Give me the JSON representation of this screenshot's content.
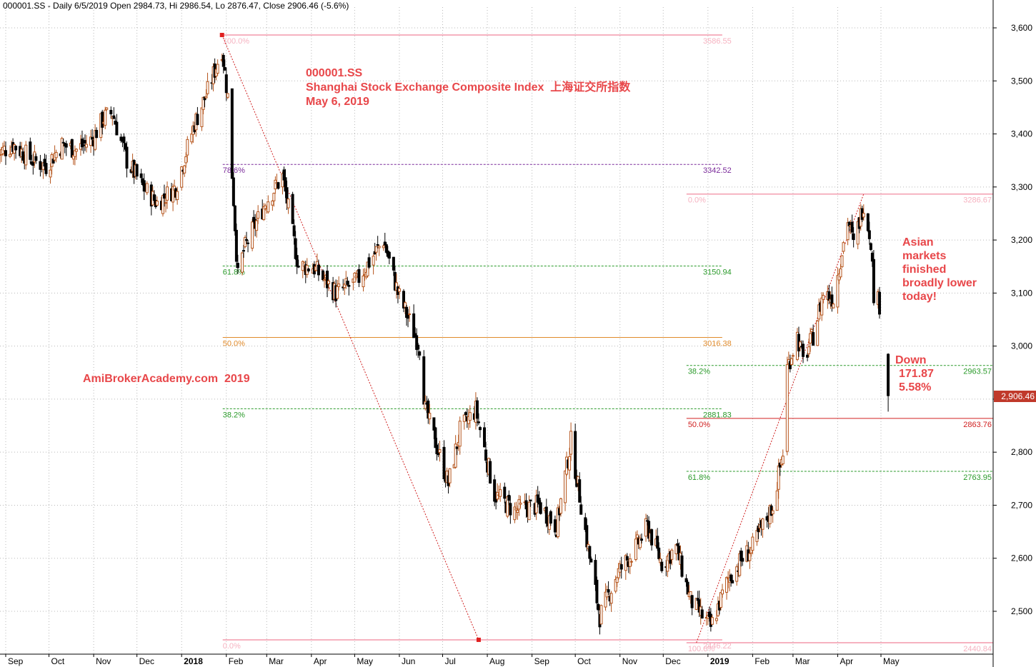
{
  "header": "000001.SS - Daily 6/5/2019 Open 2984.73, Hi 2986.54, Lo 2876.47, Close 2906.46 (-5.6%)",
  "annotations": {
    "ticker": "000001.SS",
    "index_name": "Shanghai Stock Exchange Composite Index  上海证交所指数",
    "date": "May 6, 2019",
    "watermark": "AmiBrokerAcademy.com  2019",
    "asian_lines": [
      "Asian",
      "markets",
      "finished",
      "broadly lower",
      "today!"
    ],
    "down_lines": [
      "Down",
      "171.87",
      "5.58%"
    ]
  },
  "last_price_label": "2,906.46",
  "colors": {
    "up_candle": "#b5541b",
    "down_candle": "#000000",
    "annotation_red": "#e8474a",
    "fib_pink": "#f6b2c0",
    "fib_purple": "#7a2a9a",
    "fib_green": "#2a9a2a",
    "fib_orange": "#e08a2a",
    "fib_red": "#d02020",
    "grid": "#b8b8b8"
  },
  "chart_data": {
    "type": "candlestick",
    "title": "000001.SS",
    "ylim": [
      2425,
      3640
    ],
    "y_ticks": [
      2500,
      2600,
      2700,
      2800,
      2900,
      3000,
      3100,
      3200,
      3300,
      3400,
      3500,
      3600
    ],
    "y_tick_labels": [
      "2,500",
      "2,600",
      "2,700",
      "2,800",
      "",
      "3,000",
      "3,100",
      "3,200",
      "3,300",
      "3,400",
      "3,500",
      "3,600"
    ],
    "x_labels": [
      {
        "label": "Sep",
        "date": "2017-09-01"
      },
      {
        "label": "Oct",
        "date": "2017-10-01"
      },
      {
        "label": "Nov",
        "date": "2017-11-01"
      },
      {
        "label": "Dec",
        "date": "2017-12-01"
      },
      {
        "label": "2018",
        "date": "2018-01-01",
        "bold": true
      },
      {
        "label": "Feb",
        "date": "2018-02-01"
      },
      {
        "label": "Mar",
        "date": "2018-03-01"
      },
      {
        "label": "Apr",
        "date": "2018-04-01"
      },
      {
        "label": "May",
        "date": "2018-05-01"
      },
      {
        "label": "Jun",
        "date": "2018-06-01"
      },
      {
        "label": "Jul",
        "date": "2018-07-01"
      },
      {
        "label": "Aug",
        "date": "2018-08-01"
      },
      {
        "label": "Sep",
        "date": "2018-09-01"
      },
      {
        "label": "Oct",
        "date": "2018-10-01"
      },
      {
        "label": "Nov",
        "date": "2018-11-01"
      },
      {
        "label": "Dec",
        "date": "2018-12-01"
      },
      {
        "label": "2019",
        "date": "2019-01-01",
        "bold": true
      },
      {
        "label": "Feb",
        "date": "2019-02-01"
      },
      {
        "label": "Mar",
        "date": "2019-03-01"
      },
      {
        "label": "Apr",
        "date": "2019-04-01"
      },
      {
        "label": "May",
        "date": "2019-05-01"
      }
    ],
    "price_path": [
      {
        "date": "2017-08-25",
        "close": 3360
      },
      {
        "date": "2017-09-06",
        "close": 3380
      },
      {
        "date": "2017-09-20",
        "close": 3350
      },
      {
        "date": "2017-09-29",
        "close": 3340
      },
      {
        "date": "2017-10-10",
        "close": 3380
      },
      {
        "date": "2017-10-20",
        "close": 3370
      },
      {
        "date": "2017-10-31",
        "close": 3390
      },
      {
        "date": "2017-11-08",
        "close": 3430
      },
      {
        "date": "2017-11-14",
        "close": 3440
      },
      {
        "date": "2017-11-24",
        "close": 3350
      },
      {
        "date": "2017-12-05",
        "close": 3300
      },
      {
        "date": "2017-12-15",
        "close": 3270
      },
      {
        "date": "2017-12-28",
        "close": 3300
      },
      {
        "date": "2018-01-10",
        "close": 3420
      },
      {
        "date": "2018-01-19",
        "close": 3480
      },
      {
        "date": "2018-01-29",
        "close": 3560
      },
      {
        "date": "2018-02-02",
        "close": 3470
      },
      {
        "date": "2018-02-09",
        "close": 3130
      },
      {
        "date": "2018-02-13",
        "close": 3180
      },
      {
        "date": "2018-02-28",
        "close": 3270
      },
      {
        "date": "2018-03-12",
        "close": 3320
      },
      {
        "date": "2018-03-23",
        "close": 3150
      },
      {
        "date": "2018-04-02",
        "close": 3150
      },
      {
        "date": "2018-04-18",
        "close": 3100
      },
      {
        "date": "2018-05-02",
        "close": 3120
      },
      {
        "date": "2018-05-21",
        "close": 3200
      },
      {
        "date": "2018-05-31",
        "close": 3100
      },
      {
        "date": "2018-06-15",
        "close": 3000
      },
      {
        "date": "2018-06-19",
        "close": 2880
      },
      {
        "date": "2018-07-05",
        "close": 2740
      },
      {
        "date": "2018-07-13",
        "close": 2840
      },
      {
        "date": "2018-07-24",
        "close": 2880
      },
      {
        "date": "2018-08-06",
        "close": 2720
      },
      {
        "date": "2018-08-20",
        "close": 2690
      },
      {
        "date": "2018-09-06",
        "close": 2700
      },
      {
        "date": "2018-09-18",
        "close": 2660
      },
      {
        "date": "2018-09-28",
        "close": 2820
      },
      {
        "date": "2018-10-11",
        "close": 2600
      },
      {
        "date": "2018-10-18",
        "close": 2490
      },
      {
        "date": "2018-10-30",
        "close": 2570
      },
      {
        "date": "2018-11-12",
        "close": 2620
      },
      {
        "date": "2018-11-20",
        "close": 2660
      },
      {
        "date": "2018-11-30",
        "close": 2590
      },
      {
        "date": "2018-12-10",
        "close": 2620
      },
      {
        "date": "2018-12-20",
        "close": 2520
      },
      {
        "date": "2019-01-03",
        "close": 2470
      },
      {
        "date": "2019-01-15",
        "close": 2560
      },
      {
        "date": "2019-01-25",
        "close": 2600
      },
      {
        "date": "2019-02-01",
        "close": 2620
      },
      {
        "date": "2019-02-15",
        "close": 2700
      },
      {
        "date": "2019-02-22",
        "close": 2800
      },
      {
        "date": "2019-02-25",
        "close": 2960
      },
      {
        "date": "2019-03-04",
        "close": 3020
      },
      {
        "date": "2019-03-08",
        "close": 2970
      },
      {
        "date": "2019-03-15",
        "close": 3020
      },
      {
        "date": "2019-03-22",
        "close": 3100
      },
      {
        "date": "2019-03-29",
        "close": 3090
      },
      {
        "date": "2019-04-08",
        "close": 3240
      },
      {
        "date": "2019-04-12",
        "close": 3190
      },
      {
        "date": "2019-04-19",
        "close": 3270
      },
      {
        "date": "2019-04-24",
        "close": 3200
      },
      {
        "date": "2019-04-26",
        "close": 3100
      },
      {
        "date": "2019-04-30",
        "close": 3080
      }
    ],
    "last_candle": {
      "date": "2019-05-06",
      "open": 2984.73,
      "high": 2986.54,
      "low": 2876.47,
      "close": 2906.46
    },
    "fib_2018": {
      "x_start": "2018-01-29",
      "x_end": "2019-01-03",
      "label_end": "2018-12-28",
      "levels": [
        {
          "pct": "100.0%",
          "price": 3586.55,
          "value_label": "3586.55",
          "color": "pink",
          "style": "solid"
        },
        {
          "pct": "78.6%",
          "price": 3342.52,
          "value_label": "3342.52",
          "color": "purple",
          "style": "dashed"
        },
        {
          "pct": "61.8%",
          "price": 3150.94,
          "value_label": "3150.94",
          "color": "green",
          "style": "dashed"
        },
        {
          "pct": "50.0%",
          "price": 3016.38,
          "value_label": "3016.38",
          "color": "orange",
          "style": "solid"
        },
        {
          "pct": "38.2%",
          "price": 2881.83,
          "value_label": "2881.83",
          "color": "green",
          "style": "dashed"
        },
        {
          "pct": "0.0%",
          "price": 2446.22,
          "value_label": "2446.22",
          "color": "pink",
          "style": "solid"
        }
      ],
      "trend_line": [
        {
          "date": "2018-01-29",
          "price": 3586.55
        },
        {
          "date": "2018-07-26",
          "price": 2446.22
        }
      ]
    },
    "fib_2019": {
      "x_start": "2019-01-01",
      "levels": [
        {
          "pct": "0.0%",
          "price": 3286.67,
          "value_label": "3286.67",
          "color": "pink",
          "style": "solid"
        },
        {
          "pct": "38.2%",
          "price": 2963.57,
          "value_label": "2963.57",
          "color": "green",
          "style": "dashed"
        },
        {
          "pct": "50.0%",
          "price": 2863.76,
          "value_label": "2863.76",
          "color": "red",
          "style": "solid"
        },
        {
          "pct": "61.8%",
          "price": 2763.95,
          "value_label": "2763.95",
          "color": "green",
          "style": "dashed"
        },
        {
          "pct": "100.0%",
          "price": 2440.84,
          "value_label": "2440.84",
          "color": "pink",
          "style": "solid"
        }
      ],
      "trend_line": [
        {
          "date": "2018-12-24",
          "price": 2440.84
        },
        {
          "date": "2019-04-19",
          "price": 3286.67
        }
      ]
    }
  }
}
